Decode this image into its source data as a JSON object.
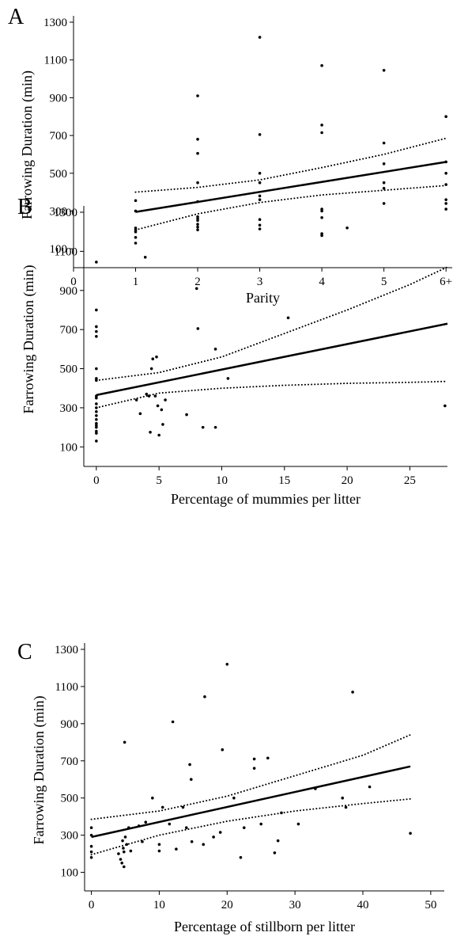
{
  "chart_data": [
    {
      "type": "scatter",
      "panel_label": "A",
      "ylabel": "Farrowing Duration (min)",
      "xlabel": "Parity",
      "xlim": [
        0,
        6.1
      ],
      "ylim": [
        0,
        1300
      ],
      "xticks": [
        0,
        1,
        2,
        3,
        4,
        5,
        {
          "value": 6,
          "label": "6+"
        }
      ],
      "yticks": [
        100,
        300,
        500,
        700,
        900,
        1100,
        1300
      ],
      "points": {
        "x": [
          1,
          1,
          1,
          1,
          1,
          1,
          1,
          2,
          2,
          2,
          2,
          2,
          2,
          2,
          2,
          2,
          2,
          2,
          3,
          3,
          3,
          3,
          3,
          3,
          3,
          3,
          3,
          4,
          4,
          4,
          4,
          4,
          4,
          4,
          4,
          5,
          5,
          5,
          5,
          5,
          5,
          6,
          6,
          6,
          6,
          6,
          6,
          6
        ],
        "y": [
          355,
          300,
          210,
          200,
          190,
          160,
          130,
          910,
          680,
          605,
          450,
          350,
          270,
          260,
          250,
          230,
          215,
          200,
          1220,
          705,
          500,
          450,
          380,
          360,
          255,
          225,
          205,
          1070,
          755,
          715,
          310,
          300,
          265,
          180,
          170,
          1045,
          660,
          550,
          450,
          420,
          340,
          800,
          560,
          500,
          440,
          360,
          340,
          310
        ]
      },
      "fit_line": {
        "x": [
          1,
          6
        ],
        "y": [
          295,
          560
        ]
      },
      "ci_upper": {
        "x": [
          1,
          2,
          3,
          4,
          5,
          6
        ],
        "y": [
          400,
          425,
          465,
          530,
          600,
          685
        ]
      },
      "ci_lower": {
        "x": [
          1,
          2,
          3,
          4,
          5,
          6
        ],
        "y": [
          200,
          285,
          345,
          385,
          410,
          435
        ]
      }
    },
    {
      "type": "scatter",
      "panel_label": "B",
      "ylabel": "Farrowing Duration (min)",
      "xlabel": "Percentage of mummies per litter",
      "xlim": [
        -1,
        28
      ],
      "ylim": [
        0,
        1300
      ],
      "xticks": [
        0,
        5,
        10,
        15,
        20,
        25
      ],
      "yticks": [
        100,
        300,
        500,
        700,
        900,
        1100,
        1300
      ],
      "points": {
        "x": [
          0,
          0,
          0,
          0,
          0,
          0,
          0,
          0,
          0,
          0,
          0,
          0,
          0,
          0,
          0,
          0,
          0,
          0,
          0,
          0,
          0,
          3.2,
          3.5,
          3.9,
          4.0,
          4.2,
          4.3,
          4.4,
          4.5,
          4.8,
          4.7,
          4.9,
          5.0,
          5.2,
          5.3,
          5.5,
          7.2,
          8.0,
          8.1,
          8.5,
          9.5,
          9.5,
          10.5,
          15.3,
          20,
          27.8
        ],
        "y": [
          1045,
          800,
          715,
          690,
          665,
          500,
          450,
          440,
          360,
          350,
          320,
          300,
          280,
          260,
          240,
          220,
          210,
          200,
          180,
          170,
          130,
          340,
          270,
          1070,
          370,
          360,
          175,
          500,
          550,
          560,
          360,
          310,
          160,
          290,
          215,
          340,
          265,
          910,
          705,
          200,
          200,
          600,
          450,
          760,
          1220,
          310
        ]
      },
      "fit_line": {
        "x": [
          0,
          28
        ],
        "y": [
          365,
          730
        ]
      },
      "ci_upper": {
        "x": [
          0,
          5,
          10,
          15,
          20,
          25,
          28
        ],
        "y": [
          440,
          480,
          560,
          680,
          800,
          930,
          1020
        ]
      },
      "ci_lower": {
        "x": [
          0,
          5,
          10,
          15,
          20,
          25,
          28
        ],
        "y": [
          300,
          375,
          400,
          415,
          425,
          430,
          435
        ]
      }
    },
    {
      "type": "scatter",
      "panel_label": "C",
      "ylabel": "Farrowing Duration (min)",
      "xlabel": "Percentage of stillborn per litter",
      "xlim": [
        -1,
        52
      ],
      "ylim": [
        0,
        1300
      ],
      "xticks": [
        0,
        10,
        20,
        30,
        40,
        50
      ],
      "yticks": [
        100,
        300,
        500,
        700,
        900,
        1100,
        1300
      ],
      "points": {
        "x": [
          0,
          0,
          0,
          0,
          0,
          4,
          4.3,
          4.5,
          4.6,
          4.7,
          4.8,
          4.8,
          4.9,
          5,
          5.2,
          5.5,
          5.8,
          7,
          7.5,
          8,
          9,
          10,
          10,
          10.5,
          11.5,
          12,
          12.5,
          13.5,
          14,
          14.5,
          14.7,
          14.8,
          16.5,
          16.7,
          18,
          19,
          19.3,
          20,
          21,
          22,
          22.5,
          24,
          24,
          25,
          26,
          27,
          27.5,
          28,
          30.5,
          33,
          37,
          37.5,
          38.5,
          41,
          47
        ],
        "y": [
          340,
          300,
          240,
          210,
          180,
          200,
          170,
          150,
          270,
          230,
          130,
          210,
          800,
          290,
          250,
          340,
          215,
          350,
          265,
          370,
          500,
          215,
          250,
          450,
          360,
          910,
          225,
          450,
          340,
          680,
          600,
          265,
          250,
          1045,
          290,
          315,
          760,
          1220,
          500,
          180,
          340,
          710,
          660,
          360,
          715,
          205,
          270,
          420,
          360,
          550,
          500,
          450,
          1070,
          560,
          310
        ]
      },
      "fit_line": {
        "x": [
          0,
          47
        ],
        "y": [
          290,
          670
        ]
      },
      "ci_upper": {
        "x": [
          0,
          10,
          20,
          30,
          40,
          47
        ],
        "y": [
          385,
          430,
          510,
          620,
          730,
          840
        ]
      },
      "ci_lower": {
        "x": [
          0,
          10,
          20,
          30,
          40,
          47
        ],
        "y": [
          195,
          300,
          375,
          430,
          470,
          495
        ]
      }
    }
  ]
}
